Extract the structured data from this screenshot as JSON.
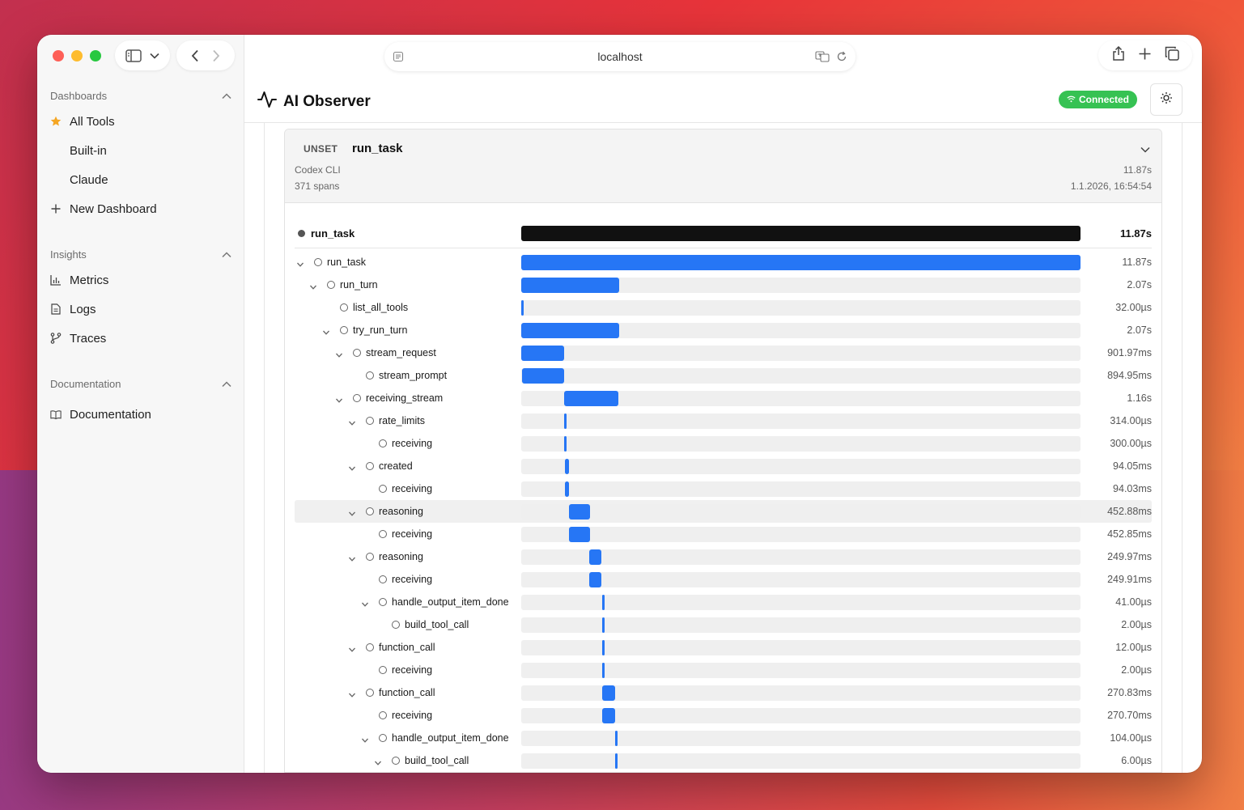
{
  "browser": {
    "url": "localhost"
  },
  "sidebar": {
    "sections": [
      {
        "title": "Dashboards",
        "items": [
          {
            "label": "All Tools",
            "icon": "star-icon"
          },
          {
            "label": "Built-in",
            "icon": ""
          },
          {
            "label": "Claude",
            "icon": ""
          },
          {
            "label": "New Dashboard",
            "icon": "plus-icon"
          }
        ]
      },
      {
        "title": "Insights",
        "items": [
          {
            "label": "Metrics",
            "icon": "bar-chart-icon"
          },
          {
            "label": "Logs",
            "icon": "document-icon"
          },
          {
            "label": "Traces",
            "icon": "branch-icon"
          }
        ]
      },
      {
        "title": "Documentation",
        "items": [
          {
            "label": "Documentation",
            "icon": "book-icon"
          }
        ]
      }
    ]
  },
  "header": {
    "title": "AI Observer",
    "status": "Connected",
    "status_color": "#36c253"
  },
  "trace": {
    "status": "UNSET",
    "name": "run_task",
    "service": "Codex CLI",
    "span_count": "371 spans",
    "duration": "11.87s",
    "timestamp": "1.1.2026, 16:54:54",
    "root": {
      "name": "run_task",
      "duration": "11.87s"
    },
    "total_seconds": 11.87,
    "spans": [
      {
        "name": "run_task",
        "depth": 0,
        "expanded": true,
        "start": 0.0,
        "len": 11.87,
        "duration": "11.87s"
      },
      {
        "name": "run_turn",
        "depth": 1,
        "expanded": true,
        "start": 0.0,
        "len": 2.07,
        "duration": "2.07s"
      },
      {
        "name": "list_all_tools",
        "depth": 2,
        "expanded": false,
        "start": 0.0,
        "len": 3e-05,
        "duration": "32.00µs"
      },
      {
        "name": "try_run_turn",
        "depth": 2,
        "expanded": true,
        "start": 0.0,
        "len": 2.07,
        "duration": "2.07s"
      },
      {
        "name": "stream_request",
        "depth": 3,
        "expanded": true,
        "start": 0.0,
        "len": 0.902,
        "duration": "901.97ms"
      },
      {
        "name": "stream_prompt",
        "depth": 4,
        "expanded": false,
        "start": 0.01,
        "len": 0.895,
        "duration": "894.95ms"
      },
      {
        "name": "receiving_stream",
        "depth": 3,
        "expanded": true,
        "start": 0.91,
        "len": 1.16,
        "duration": "1.16s"
      },
      {
        "name": "rate_limits",
        "depth": 4,
        "expanded": true,
        "start": 0.91,
        "len": 0.0003,
        "duration": "314.00µs"
      },
      {
        "name": "receiving",
        "depth": 5,
        "expanded": false,
        "start": 0.91,
        "len": 0.0003,
        "duration": "300.00µs"
      },
      {
        "name": "created",
        "depth": 4,
        "expanded": true,
        "start": 0.92,
        "len": 0.094,
        "duration": "94.05ms"
      },
      {
        "name": "receiving",
        "depth": 5,
        "expanded": false,
        "start": 0.92,
        "len": 0.094,
        "duration": "94.03ms"
      },
      {
        "name": "reasoning",
        "depth": 4,
        "expanded": true,
        "start": 1.01,
        "len": 0.453,
        "duration": "452.88ms",
        "highlight": true
      },
      {
        "name": "receiving",
        "depth": 5,
        "expanded": false,
        "start": 1.01,
        "len": 0.453,
        "duration": "452.85ms"
      },
      {
        "name": "reasoning",
        "depth": 4,
        "expanded": true,
        "start": 1.45,
        "len": 0.25,
        "duration": "249.97ms"
      },
      {
        "name": "receiving",
        "depth": 5,
        "expanded": false,
        "start": 1.45,
        "len": 0.25,
        "duration": "249.91ms"
      },
      {
        "name": "handle_output_item_done",
        "depth": 5,
        "expanded": true,
        "start": 1.72,
        "len": 4e-05,
        "duration": "41.00µs"
      },
      {
        "name": "build_tool_call",
        "depth": 6,
        "expanded": false,
        "start": 1.72,
        "len": 2e-06,
        "duration": "2.00µs"
      },
      {
        "name": "function_call",
        "depth": 4,
        "expanded": true,
        "start": 1.72,
        "len": 1.2e-05,
        "duration": "12.00µs"
      },
      {
        "name": "receiving",
        "depth": 5,
        "expanded": false,
        "start": 1.72,
        "len": 2e-06,
        "duration": "2.00µs"
      },
      {
        "name": "function_call",
        "depth": 4,
        "expanded": true,
        "start": 1.72,
        "len": 0.271,
        "duration": "270.83ms"
      },
      {
        "name": "receiving",
        "depth": 5,
        "expanded": false,
        "start": 1.72,
        "len": 0.271,
        "duration": "270.70ms"
      },
      {
        "name": "handle_output_item_done",
        "depth": 5,
        "expanded": true,
        "start": 1.99,
        "len": 0.0001,
        "duration": "104.00µs"
      },
      {
        "name": "build_tool_call",
        "depth": 6,
        "expanded": true,
        "start": 1.99,
        "len": 6e-06,
        "duration": "6.00µs"
      }
    ]
  },
  "colors": {
    "span_fill": "#2676f5",
    "root_bar": "#111111",
    "accent_star": "#f5a623"
  }
}
